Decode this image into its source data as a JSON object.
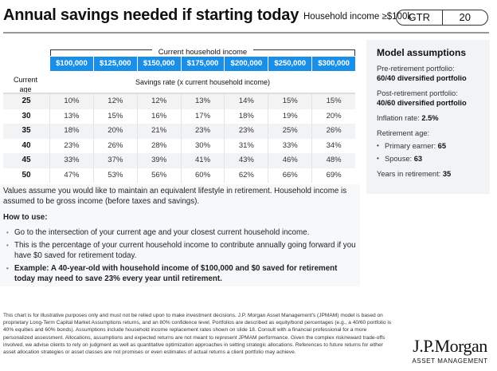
{
  "header": {
    "title": "Annual savings needed if starting today",
    "household_filter": "Household income ≥$100k",
    "badge_section": "GTR",
    "badge_page": "20"
  },
  "table": {
    "group_label": "Current household income",
    "incomes": [
      "$100,000",
      "$125,000",
      "$150,000",
      "$175,000",
      "$200,000",
      "$250,000",
      "$300,000"
    ],
    "age_label_1": "Current",
    "age_label_2": "age",
    "rate_label": "Savings rate (x current household income)",
    "rows": [
      {
        "age": "25",
        "values": [
          "10%",
          "12%",
          "12%",
          "13%",
          "14%",
          "15%",
          "15%"
        ]
      },
      {
        "age": "30",
        "values": [
          "13%",
          "15%",
          "16%",
          "17%",
          "18%",
          "19%",
          "20%"
        ]
      },
      {
        "age": "35",
        "values": [
          "18%",
          "20%",
          "21%",
          "23%",
          "23%",
          "25%",
          "26%"
        ]
      },
      {
        "age": "40",
        "values": [
          "23%",
          "26%",
          "28%",
          "30%",
          "31%",
          "33%",
          "34%"
        ]
      },
      {
        "age": "45",
        "values": [
          "33%",
          "37%",
          "39%",
          "41%",
          "43%",
          "46%",
          "48%"
        ]
      },
      {
        "age": "50",
        "values": [
          "47%",
          "53%",
          "56%",
          "60%",
          "62%",
          "66%",
          "69%"
        ]
      }
    ]
  },
  "notes": {
    "intro": "Values assume you would like to maintain an equivalent lifestyle in retirement. Household income is assumed to be gross income (before taxes and savings).",
    "how_to_heading": "How to use:",
    "bullets": [
      "Go to the intersection of your current age and your closest current household income.",
      "This is the percentage of your current household income to contribute annually going forward if you have $0 saved for retirement today.",
      "Example: A 40-year-old with household income of $100,000 and $0 saved for retirement today may need to save 23% every year until retirement."
    ]
  },
  "assumptions": {
    "title": "Model assumptions",
    "pre_label": "Pre-retirement portfolio:",
    "pre_value": "60/40 diversified portfolio",
    "post_label": "Post-retirement portfolio:",
    "post_value": "40/60 diversified portfolio",
    "inflation_label": "Inflation rate: ",
    "inflation_value": "2.5%",
    "retirement_age_label": "Retirement age:",
    "primary_label": "Primary earner: ",
    "primary_value": "65",
    "spouse_label": "Spouse: ",
    "spouse_value": "63",
    "years_label": "Years in retirement: ",
    "years_value": "35"
  },
  "footer": {
    "disclaimer": "This chart is for illustrative purposes only and must not be relied upon to make investment decisions. J.P. Morgan Asset Management's (JPMAM) model is based on proprietary Long-Term Capital Market Assumptions returns, and an 80% confidence level. Portfolios are described as equity/bond percentages (e.g., a 40/60 portfolio is 40% equities and 60% bonds). Assumptions include household income replacement rates shown on slide 18. Consult with a financial professional for a more personalized assessment. Allocations, assumptions and expected returns are not meant to represent JPMAM performance. Given the complex risk/reward trade-offs involved, we advise clients to rely on judgment as well as quantitative optimization approaches in setting strategic allocations. References to future returns for either asset allocation strategies or asset classes are not promises or even estimates of actual returns a client portfolio may achieve.",
    "logo_main": "J.P.Morgan",
    "logo_sub": "ASSET MANAGEMENT"
  },
  "colors": {
    "header_blue": "#1a8fe8",
    "panel_gray": "#f2f3f5"
  }
}
